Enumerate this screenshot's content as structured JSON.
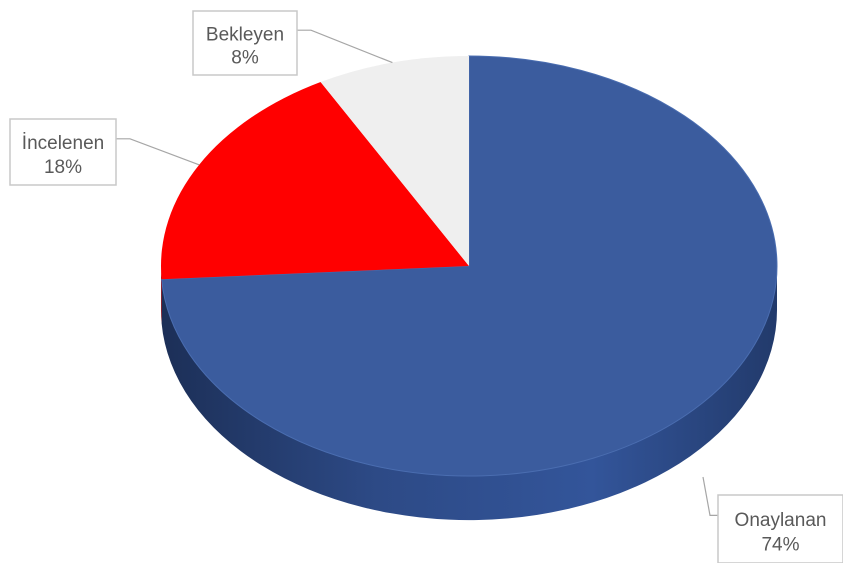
{
  "chart_data": {
    "type": "pie",
    "title": "",
    "slices": [
      {
        "label": "Onaylanan",
        "value": 74,
        "value_label": "74%",
        "color": "#3b5c9e",
        "side_color": "#2a467f"
      },
      {
        "label": "İncelenen",
        "value": 18,
        "value_label": "18%",
        "color": "#ff0000",
        "side_color": "#b00000"
      },
      {
        "label": "Bekleyen",
        "value": 8,
        "value_label": "8%",
        "color": "#efefef",
        "side_color": "#c9c9c9"
      }
    ],
    "legend": "none",
    "style": "3d"
  }
}
